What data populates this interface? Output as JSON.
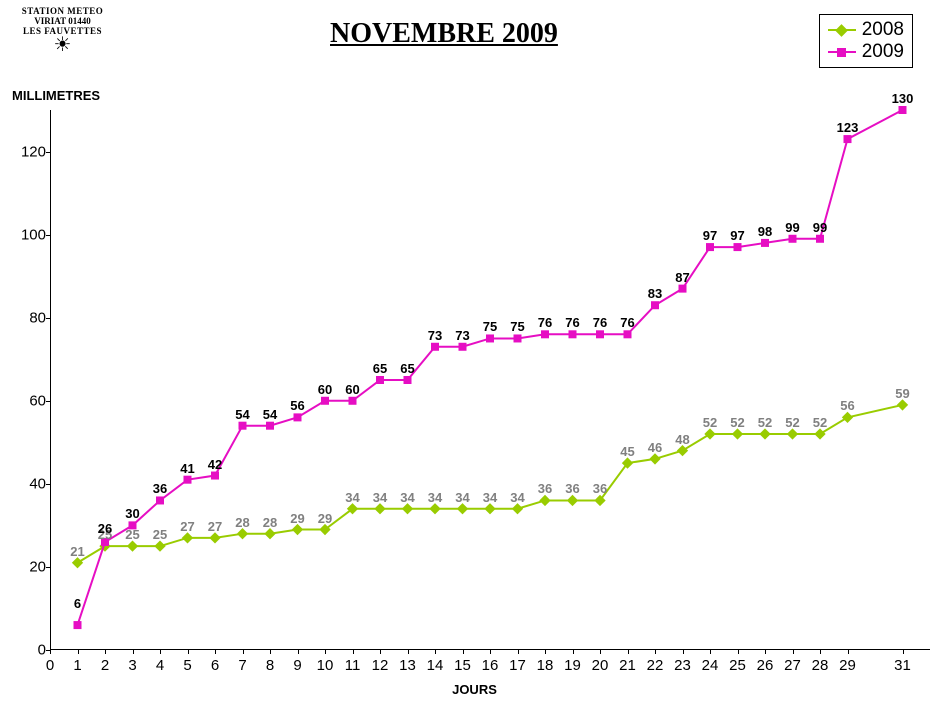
{
  "station_badge": {
    "top_arc": "STATION METEO",
    "mid": "VIRIAT 01440",
    "bottom_arc": "LES FAUVETTES"
  },
  "title": "NOVEMBRE 2009",
  "yaxis_label": "MILLIMETRES",
  "xaxis_label": "JOURS",
  "legend": {
    "s2008": "2008",
    "s2009": "2009"
  },
  "colors": {
    "s2008_line": "#99cc00",
    "s2008_marker": "#99cc00",
    "s2008_label": "#808080",
    "s2009_line": "#e60ec3",
    "s2009_marker": "#e60ec3",
    "s2009_label": "#000000",
    "axis": "#000000",
    "background": "#ffffff"
  },
  "chart": {
    "type": "line",
    "xlim": [
      0,
      32
    ],
    "ylim": [
      0,
      130
    ],
    "xtick_step": 1,
    "ytick_step": 20,
    "x_ticks": [
      0,
      1,
      2,
      3,
      4,
      5,
      6,
      7,
      8,
      9,
      10,
      11,
      12,
      13,
      14,
      15,
      16,
      17,
      18,
      19,
      20,
      21,
      22,
      23,
      24,
      25,
      26,
      27,
      28,
      29,
      31
    ],
    "y_ticks": [
      0,
      20,
      40,
      60,
      80,
      100,
      120
    ],
    "line_width": 2,
    "marker_size": 8,
    "marker_2008": "diamond",
    "marker_2009": "square",
    "label_fontsize": 13,
    "tick_fontsize": 15,
    "title_fontsize": 28,
    "x_values": [
      1,
      2,
      3,
      4,
      5,
      6,
      7,
      8,
      9,
      10,
      11,
      12,
      13,
      14,
      15,
      16,
      17,
      18,
      19,
      20,
      21,
      22,
      23,
      24,
      25,
      26,
      27,
      28,
      29,
      31
    ],
    "s2008": [
      21,
      25,
      25,
      25,
      27,
      27,
      28,
      28,
      29,
      29,
      34,
      34,
      34,
      34,
      34,
      34,
      34,
      36,
      36,
      36,
      45,
      46,
      48,
      52,
      52,
      52,
      52,
      52,
      56,
      59
    ],
    "s2009": [
      6,
      26,
      30,
      36,
      41,
      42,
      54,
      54,
      56,
      60,
      60,
      65,
      65,
      73,
      73,
      75,
      75,
      76,
      76,
      76,
      76,
      83,
      87,
      97,
      97,
      98,
      99,
      99,
      123,
      130
    ],
    "label_offset_y_2008": 18,
    "label_offset_y_2009": 18,
    "label_offset_overrides_2009": {
      "1": 28,
      "2": 20
    }
  }
}
